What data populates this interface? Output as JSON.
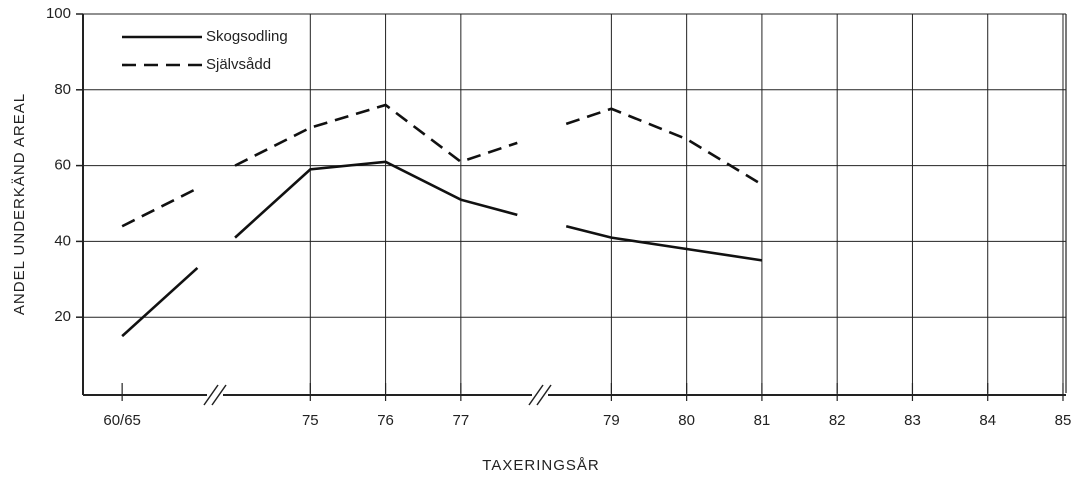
{
  "chart_data": {
    "type": "line",
    "xlabel": "TAXERINGSÅR",
    "ylabel": "ANDEL UNDERKÄND AREAL",
    "x": [
      72.5,
      73.5,
      73.75,
      74,
      75,
      76,
      77,
      77.75,
      78.1,
      78.4,
      79,
      80,
      81
    ],
    "series": [
      {
        "name": "Skogsodling",
        "color": "#111111",
        "dash": "solid",
        "values": [
          15,
          33,
          null,
          41,
          59,
          61,
          51,
          47,
          null,
          44,
          41,
          38,
          35
        ]
      },
      {
        "name": "Självsådd",
        "color": "#111111",
        "dash": "dashed",
        "values": [
          44,
          54,
          null,
          60,
          70,
          76,
          61,
          66,
          null,
          71,
          75,
          67,
          55
        ]
      }
    ],
    "xlim": [
      71.98,
      85.04
    ],
    "xticks": [
      {
        "value": 72.5,
        "label": "60/65"
      },
      75,
      76,
      77,
      79,
      80,
      81,
      82,
      83,
      84,
      85
    ],
    "ylim": [
      0,
      100
    ],
    "yticks": [
      20,
      40,
      60,
      80,
      100
    ],
    "grid": true,
    "legend": "upper left"
  }
}
